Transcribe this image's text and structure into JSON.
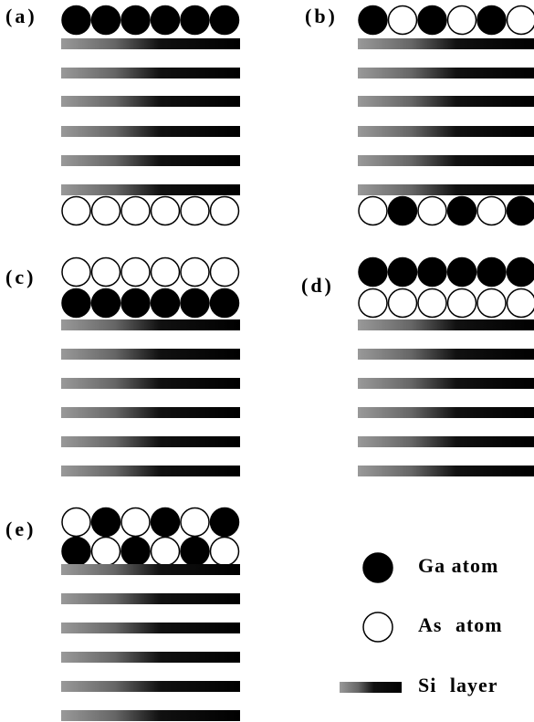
{
  "panels": [
    {
      "label": "(a)"
    },
    {
      "label": "(b)"
    },
    {
      "label": "(c)"
    },
    {
      "label": "(d)"
    },
    {
      "label": "(e)"
    }
  ],
  "legend": [
    {
      "label": "Ga atom"
    },
    {
      "label": "As atom"
    },
    {
      "label": "Si layer"
    }
  ]
}
